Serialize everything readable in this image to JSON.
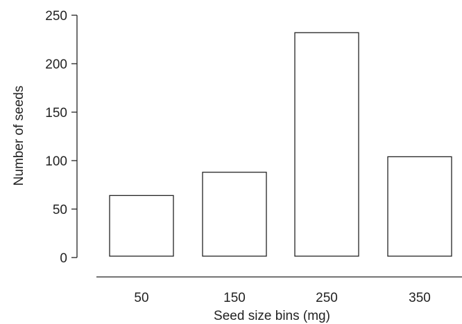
{
  "chart_data": {
    "type": "bar",
    "title": "",
    "xlabel": "Seed size bins (mg)",
    "ylabel": "Number of seeds",
    "categories": [
      "50",
      "150",
      "250",
      "350"
    ],
    "values": [
      64,
      88,
      232,
      104
    ],
    "ylim": [
      0,
      250
    ],
    "yticks": [
      "0",
      "50",
      "100",
      "150",
      "200",
      "250"
    ],
    "grid": false,
    "legend": "none",
    "colors": {
      "bar_fill": "#ffffff",
      "bar_stroke": "#222222",
      "text": "#222222"
    }
  }
}
